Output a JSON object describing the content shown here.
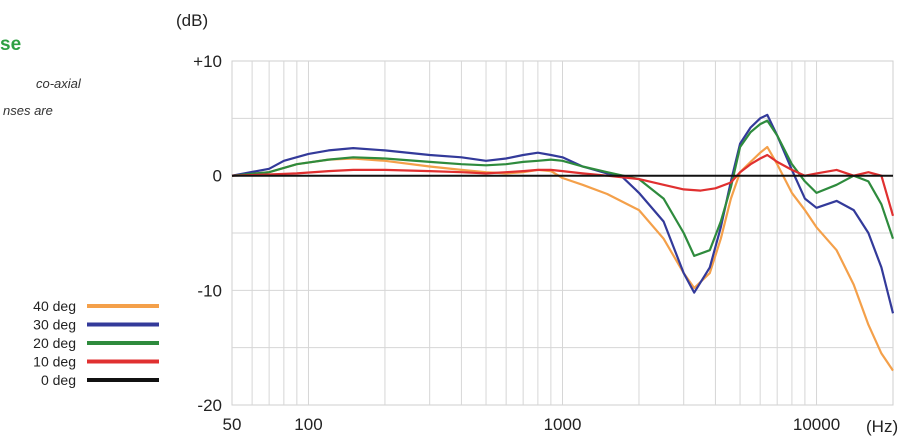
{
  "description_fragments": {
    "title": "se",
    "line1": "co-axial",
    "line2": "nses  are"
  },
  "chart_data": {
    "type": "line",
    "title": "",
    "xlabel": "(Hz)",
    "ylabel": "(dB)",
    "x_scale": "log",
    "xlim": [
      50,
      20000
    ],
    "ylim": [
      -20,
      10
    ],
    "x_ticks": [
      50,
      100,
      1000,
      10000
    ],
    "x_tick_labels": [
      "50",
      "100",
      "1000",
      "10000"
    ],
    "y_ticks": [
      10,
      0,
      -10,
      -20
    ],
    "y_tick_labels": [
      "+10",
      "0",
      "-10",
      "-20"
    ],
    "grid": true,
    "legend_position": "left",
    "series": [
      {
        "name": "40 deg",
        "color": "#f4a04a",
        "points": [
          [
            50,
            0
          ],
          [
            70,
            0.3
          ],
          [
            90,
            1
          ],
          [
            120,
            1.4
          ],
          [
            150,
            1.5
          ],
          [
            200,
            1.3
          ],
          [
            300,
            0.8
          ],
          [
            400,
            0.5
          ],
          [
            500,
            0.3
          ],
          [
            600,
            0.2
          ],
          [
            700,
            0.3
          ],
          [
            800,
            0.5
          ],
          [
            900,
            0.4
          ],
          [
            1000,
            -0.2
          ],
          [
            1200,
            -0.8
          ],
          [
            1500,
            -1.6
          ],
          [
            2000,
            -3
          ],
          [
            2500,
            -5.5
          ],
          [
            3000,
            -8.5
          ],
          [
            3300,
            -9.8
          ],
          [
            3800,
            -8.5
          ],
          [
            4200,
            -5.5
          ],
          [
            4600,
            -2
          ],
          [
            5000,
            0.3
          ],
          [
            5500,
            1.2
          ],
          [
            6000,
            2
          ],
          [
            6400,
            2.5
          ],
          [
            7000,
            1
          ],
          [
            8000,
            -1.5
          ],
          [
            9000,
            -3
          ],
          [
            10000,
            -4.5
          ],
          [
            12000,
            -6.5
          ],
          [
            14000,
            -9.5
          ],
          [
            16000,
            -13
          ],
          [
            18000,
            -15.5
          ],
          [
            20000,
            -17
          ]
        ]
      },
      {
        "name": "30 deg",
        "color": "#333a9a",
        "points": [
          [
            50,
            0
          ],
          [
            70,
            0.6
          ],
          [
            80,
            1.3
          ],
          [
            100,
            1.9
          ],
          [
            120,
            2.2
          ],
          [
            150,
            2.4
          ],
          [
            200,
            2.2
          ],
          [
            300,
            1.8
          ],
          [
            400,
            1.6
          ],
          [
            500,
            1.3
          ],
          [
            600,
            1.5
          ],
          [
            700,
            1.8
          ],
          [
            800,
            2
          ],
          [
            900,
            1.8
          ],
          [
            1000,
            1.6
          ],
          [
            1200,
            0.8
          ],
          [
            1500,
            0.2
          ],
          [
            1700,
            0
          ],
          [
            2000,
            -1.5
          ],
          [
            2500,
            -4
          ],
          [
            3000,
            -8.5
          ],
          [
            3300,
            -10.2
          ],
          [
            3800,
            -8
          ],
          [
            4200,
            -4.5
          ],
          [
            4600,
            -0.5
          ],
          [
            5000,
            2.8
          ],
          [
            5500,
            4.2
          ],
          [
            6000,
            5
          ],
          [
            6400,
            5.3
          ],
          [
            7000,
            3.5
          ],
          [
            8000,
            0.5
          ],
          [
            9000,
            -2
          ],
          [
            10000,
            -2.8
          ],
          [
            12000,
            -2.2
          ],
          [
            14000,
            -3
          ],
          [
            16000,
            -5
          ],
          [
            18000,
            -8
          ],
          [
            20000,
            -12
          ]
        ]
      },
      {
        "name": "20 deg",
        "color": "#2e8b3d",
        "points": [
          [
            50,
            0
          ],
          [
            70,
            0.3
          ],
          [
            90,
            1
          ],
          [
            120,
            1.4
          ],
          [
            150,
            1.6
          ],
          [
            200,
            1.5
          ],
          [
            300,
            1.2
          ],
          [
            400,
            1
          ],
          [
            500,
            0.9
          ],
          [
            600,
            1
          ],
          [
            700,
            1.2
          ],
          [
            800,
            1.3
          ],
          [
            900,
            1.4
          ],
          [
            1000,
            1.3
          ],
          [
            1200,
            0.8
          ],
          [
            1500,
            0.3
          ],
          [
            2000,
            -0.3
          ],
          [
            2500,
            -2
          ],
          [
            3000,
            -5
          ],
          [
            3300,
            -7
          ],
          [
            3800,
            -6.5
          ],
          [
            4200,
            -4
          ],
          [
            4600,
            -1
          ],
          [
            5000,
            2.5
          ],
          [
            5500,
            3.8
          ],
          [
            6000,
            4.5
          ],
          [
            6400,
            4.8
          ],
          [
            7000,
            3.5
          ],
          [
            8000,
            1
          ],
          [
            9000,
            -0.5
          ],
          [
            10000,
            -1.5
          ],
          [
            12000,
            -0.8
          ],
          [
            14000,
            0
          ],
          [
            16000,
            -0.5
          ],
          [
            18000,
            -2.5
          ],
          [
            20000,
            -5.5
          ]
        ]
      },
      {
        "name": "10 deg",
        "color": "#e03030",
        "points": [
          [
            50,
            0
          ],
          [
            70,
            0.1
          ],
          [
            90,
            0.2
          ],
          [
            120,
            0.4
          ],
          [
            150,
            0.5
          ],
          [
            200,
            0.5
          ],
          [
            300,
            0.4
          ],
          [
            400,
            0.3
          ],
          [
            500,
            0.2
          ],
          [
            600,
            0.3
          ],
          [
            700,
            0.4
          ],
          [
            800,
            0.5
          ],
          [
            900,
            0.5
          ],
          [
            1000,
            0.4
          ],
          [
            1200,
            0.2
          ],
          [
            1500,
            0
          ],
          [
            2000,
            -0.3
          ],
          [
            2500,
            -0.8
          ],
          [
            3000,
            -1.2
          ],
          [
            3500,
            -1.3
          ],
          [
            4000,
            -1.1
          ],
          [
            4600,
            -0.6
          ],
          [
            5000,
            0.3
          ],
          [
            5500,
            1
          ],
          [
            6000,
            1.5
          ],
          [
            6400,
            1.8
          ],
          [
            7000,
            1.2
          ],
          [
            8000,
            0.5
          ],
          [
            9000,
            0
          ],
          [
            10000,
            0.2
          ],
          [
            12000,
            0.5
          ],
          [
            14000,
            0
          ],
          [
            16000,
            0.3
          ],
          [
            18000,
            0
          ],
          [
            20000,
            -3.5
          ]
        ]
      },
      {
        "name": "0 deg",
        "color": "#111111",
        "points": [
          [
            50,
            0
          ],
          [
            20000,
            0
          ]
        ]
      }
    ]
  }
}
